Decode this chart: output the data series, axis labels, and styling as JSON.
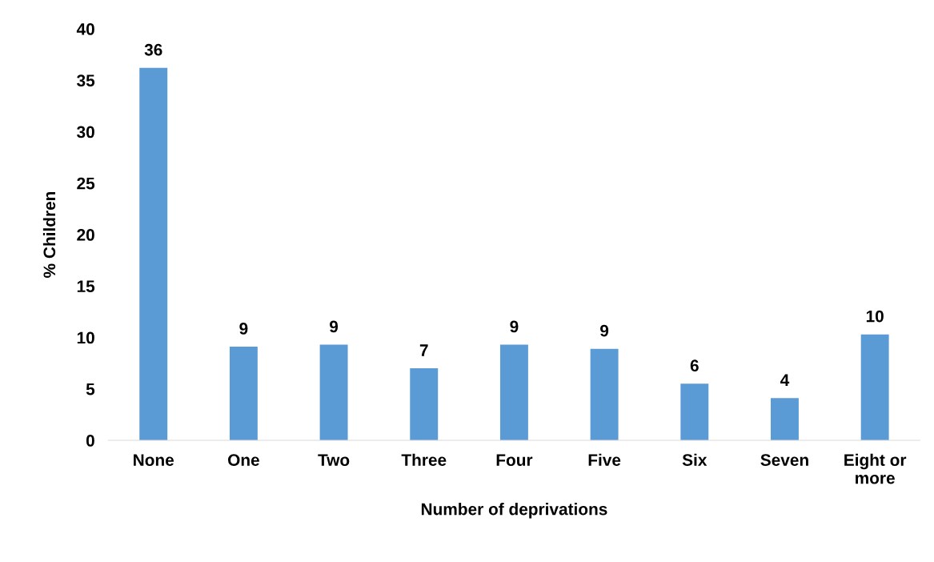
{
  "chart_data": {
    "type": "bar",
    "xlabel": "Number of deprivations",
    "ylabel": "% Children",
    "categories": [
      "None",
      "One",
      "Two",
      "Three",
      "Four",
      "Five",
      "Six",
      "Seven",
      "Eight or\nmore"
    ],
    "values": [
      36.2,
      9.1,
      9.3,
      7.0,
      9.3,
      8.9,
      5.5,
      4.1,
      10.3
    ],
    "value_labels": [
      "36",
      "9",
      "9",
      "7",
      "9",
      "9",
      "6",
      "4",
      "10"
    ],
    "color": "#5b9bd5",
    "ylim": [
      0,
      40
    ],
    "yticks": [
      0,
      5,
      10,
      15,
      20,
      25,
      30,
      35,
      40
    ],
    "grid": false,
    "legend": false
  }
}
